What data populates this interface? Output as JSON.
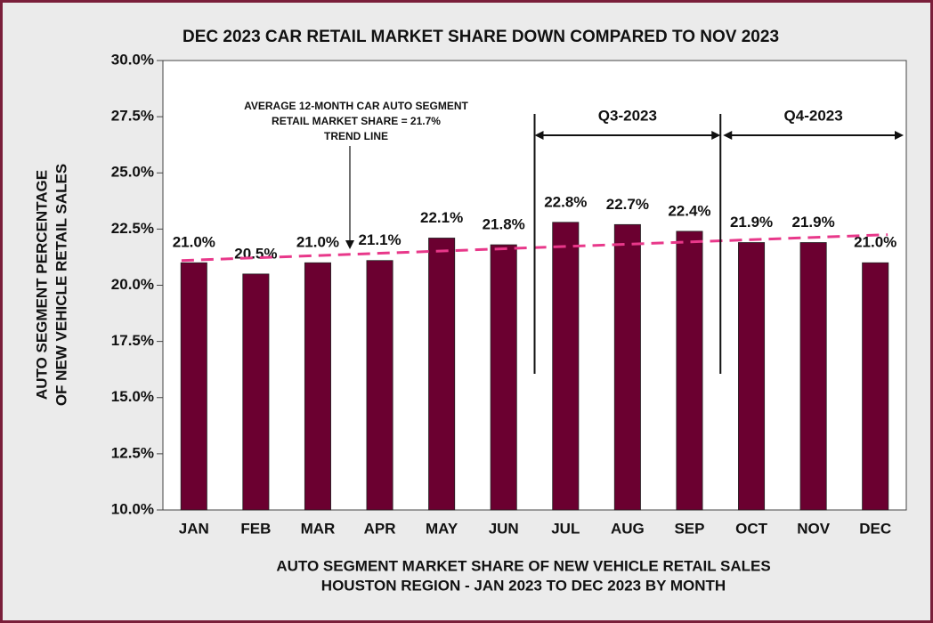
{
  "chart_data": {
    "type": "bar",
    "title": "DEC 2023 CAR RETAIL MARKET SHARE DOWN COMPARED TO NOV 2023",
    "y_label": [
      "AUTO SEGMENT PERCENTAGE",
      "OF NEW VEHICLE RETAIL SALES"
    ],
    "x_label": [
      "AUTO SEGMENT MARKET SHARE OF NEW VEHICLE RETAIL SALES",
      "HOUSTON REGION -  JAN 2023 TO DEC 2023 BY MONTH"
    ],
    "categories": [
      "JAN",
      "FEB",
      "MAR",
      "APR",
      "MAY",
      "JUN",
      "JUL",
      "AUG",
      "SEP",
      "OCT",
      "NOV",
      "DEC"
    ],
    "values": [
      21.0,
      20.5,
      21.0,
      21.1,
      22.1,
      21.8,
      22.8,
      22.7,
      22.4,
      21.9,
      21.9,
      21.0
    ],
    "value_labels": [
      "21.0%",
      "20.5%",
      "21.0%",
      "21.1%",
      "22.1%",
      "21.8%",
      "22.8%",
      "22.7%",
      "22.4%",
      "21.9%",
      "21.9%",
      "21.0%"
    ],
    "color": "#6b0030",
    "ylim": [
      10,
      30
    ],
    "yticks": [
      {
        "value": 10,
        "label": "10.0%"
      },
      {
        "value": 12.5,
        "label": "12.5%"
      },
      {
        "value": 15,
        "label": "15.0%"
      },
      {
        "value": 17.5,
        "label": "17.5%"
      },
      {
        "value": 20,
        "label": "20.0%"
      },
      {
        "value": 22.5,
        "label": "22.5%"
      },
      {
        "value": 25,
        "label": "25.0%"
      },
      {
        "value": 27.5,
        "label": "27.5%"
      },
      {
        "value": 30,
        "label": "30.0%"
      }
    ],
    "trend": {
      "start": 21.1,
      "end": 22.25,
      "color": "#e8388a"
    },
    "annotation": [
      "AVERAGE 12-MONTH CAR AUTO SEGMENT",
      "RETAIL MARKET SHARE = 21.7%",
      "TREND LINE"
    ],
    "quarters": [
      "Q3-2023",
      "Q4-2023"
    ]
  }
}
